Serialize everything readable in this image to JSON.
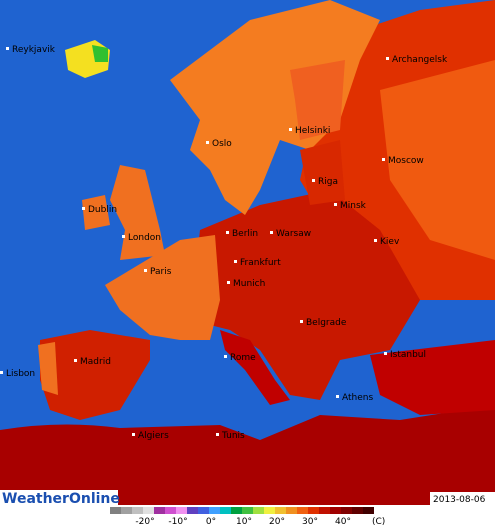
{
  "cities": [
    "Reykjavik",
    "Archangelsk",
    "Oslo",
    "Helsinki",
    "Riga",
    "Moscow",
    "Minsk",
    "Dublin",
    "London",
    "Berlin",
    "Warsaw",
    "Kiev",
    "Frankfurt",
    "Paris",
    "Munich",
    "Belgrade",
    "Rome",
    "Istanbul",
    "Madrid",
    "Lisbon",
    "Athens",
    "Algiers",
    "Tunis"
  ],
  "logo": "WeatherOnline",
  "date": "2013-08-06",
  "legend": {
    "labels": [
      "-20°",
      "-10°",
      "0°",
      "10°",
      "20°",
      "30°",
      "40°"
    ],
    "unit": "(C)"
  }
}
